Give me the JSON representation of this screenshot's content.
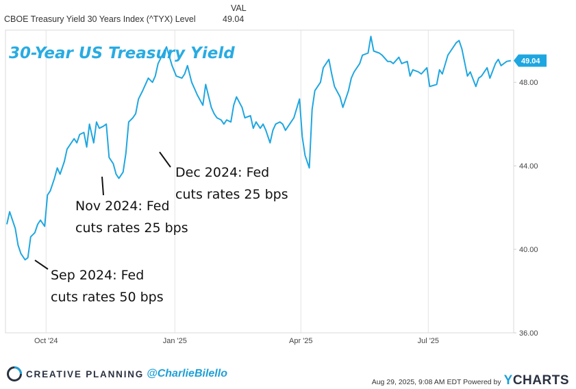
{
  "legend": {
    "series_name": "CBOE Treasury Yield 30 Years Index (^TYX) Level",
    "value_header": "VAL",
    "value": "49.04"
  },
  "chart_data": {
    "type": "line",
    "title": "30-Year US Treasury Yield",
    "xlabel": "",
    "ylabel": "",
    "x_ticks": [
      "Oct '24",
      "Jan '25",
      "Apr '25",
      "Jul '25"
    ],
    "y_ticks": [
      "36.00",
      "40.00",
      "44.00",
      "48.00"
    ],
    "ylim": [
      36,
      50.5
    ],
    "grid": "vertical-lines",
    "last_value_label": "49.04",
    "line_color": "#1ea6e0",
    "series": [
      {
        "name": "CBOE Treasury Yield 30 Years Index (^TYX) Level",
        "x": [
          "2024-09-03",
          "2024-09-05",
          "2024-09-09",
          "2024-09-11",
          "2024-09-13",
          "2024-09-16",
          "2024-09-18",
          "2024-09-20",
          "2024-09-23",
          "2024-09-25",
          "2024-09-27",
          "2024-09-30",
          "2024-10-02",
          "2024-10-04",
          "2024-10-07",
          "2024-10-09",
          "2024-10-11",
          "2024-10-14",
          "2024-10-16",
          "2024-10-18",
          "2024-10-21",
          "2024-10-23",
          "2024-10-25",
          "2024-10-28",
          "2024-10-30",
          "2024-11-01",
          "2024-11-04",
          "2024-11-06",
          "2024-11-08",
          "2024-11-11",
          "2024-11-13",
          "2024-11-15",
          "2024-11-18",
          "2024-11-20",
          "2024-11-22",
          "2024-11-25",
          "2024-11-27",
          "2024-11-29",
          "2024-12-02",
          "2024-12-04",
          "2024-12-06",
          "2024-12-09",
          "2024-12-11",
          "2024-12-13",
          "2024-12-16",
          "2024-12-18",
          "2024-12-20",
          "2024-12-23",
          "2024-12-26",
          "2024-12-30",
          "2025-01-02",
          "2025-01-06",
          "2025-01-08",
          "2025-01-10",
          "2025-01-13",
          "2025-01-15",
          "2025-01-17",
          "2025-01-21",
          "2025-01-23",
          "2025-01-27",
          "2025-01-29",
          "2025-01-31",
          "2025-02-03",
          "2025-02-05",
          "2025-02-07",
          "2025-02-10",
          "2025-02-12",
          "2025-02-14",
          "2025-02-18",
          "2025-02-20",
          "2025-02-24",
          "2025-02-26",
          "2025-02-28",
          "2025-03-03",
          "2025-03-05",
          "2025-03-07",
          "2025-03-10",
          "2025-03-12",
          "2025-03-14",
          "2025-03-17",
          "2025-03-19",
          "2025-03-21",
          "2025-03-25",
          "2025-03-27",
          "2025-03-31",
          "2025-04-02",
          "2025-04-04",
          "2025-04-07",
          "2025-04-09",
          "2025-04-11",
          "2025-04-15",
          "2025-04-17",
          "2025-04-21",
          "2025-04-23",
          "2025-04-25",
          "2025-04-29",
          "2025-05-01",
          "2025-05-05",
          "2025-05-07",
          "2025-05-09",
          "2025-05-13",
          "2025-05-15",
          "2025-05-19",
          "2025-05-21",
          "2025-05-23",
          "2025-05-27",
          "2025-05-29",
          "2025-06-02",
          "2025-06-04",
          "2025-06-06",
          "2025-06-10",
          "2025-06-12",
          "2025-06-16",
          "2025-06-18",
          "2025-06-20",
          "2025-06-24",
          "2025-06-26",
          "2025-06-30",
          "2025-07-02",
          "2025-07-07",
          "2025-07-09",
          "2025-07-11",
          "2025-07-15",
          "2025-07-17",
          "2025-07-21",
          "2025-07-23",
          "2025-07-25",
          "2025-07-29",
          "2025-07-31",
          "2025-08-04",
          "2025-08-06",
          "2025-08-08",
          "2025-08-12",
          "2025-08-14",
          "2025-08-18",
          "2025-08-20",
          "2025-08-22",
          "2025-08-26",
          "2025-08-29"
        ],
        "y": [
          41.2,
          41.8,
          41.0,
          40.2,
          39.8,
          39.5,
          39.6,
          40.6,
          40.8,
          41.2,
          41.4,
          41.1,
          42.6,
          42.8,
          43.4,
          43.9,
          43.6,
          44.2,
          44.8,
          45.0,
          45.3,
          45.1,
          45.5,
          45.6,
          44.9,
          46.0,
          45.1,
          46.1,
          45.8,
          45.9,
          46.0,
          44.4,
          44.1,
          43.6,
          43.4,
          43.7,
          44.6,
          46.1,
          46.3,
          46.5,
          47.2,
          47.6,
          47.9,
          48.2,
          48.0,
          48.3,
          48.9,
          49.3,
          49.7,
          48.8,
          48.3,
          48.2,
          48.4,
          48.8,
          48.0,
          47.7,
          47.4,
          46.9,
          47.9,
          46.8,
          46.5,
          46.3,
          46.2,
          46.0,
          46.2,
          46.1,
          46.9,
          47.3,
          46.8,
          46.3,
          46.4,
          45.8,
          46.1,
          45.8,
          46.0,
          45.7,
          45.1,
          45.7,
          46.0,
          46.1,
          46.0,
          45.7,
          46.1,
          46.3,
          47.2,
          45.4,
          44.5,
          43.9,
          46.7,
          47.6,
          48.0,
          48.7,
          49.1,
          48.4,
          47.8,
          47.3,
          46.8,
          47.6,
          48.2,
          48.5,
          48.9,
          49.3,
          49.4,
          50.2,
          49.5,
          49.4,
          49.3,
          49.0,
          49.0,
          48.9,
          49.2,
          48.9,
          49.0,
          48.3,
          48.6,
          48.5,
          48.4,
          48.7,
          47.8,
          47.9,
          48.6,
          48.4,
          49.3,
          49.5,
          49.9,
          50.0,
          49.6,
          48.3,
          48.5,
          47.8,
          48.2,
          48.3,
          48.7,
          48.2,
          48.9,
          49.1,
          48.8,
          49.0,
          49.04
        ]
      }
    ],
    "annotations": [
      {
        "text_line1": "Sep 2024: Fed",
        "text_line2": "cuts rates 50 bps",
        "date": "2024-09-18"
      },
      {
        "text_line1": "Nov 2024: Fed",
        "text_line2": "cuts rates 25 bps",
        "date": "2024-11-07"
      },
      {
        "text_line1": "Dec 2024: Fed",
        "text_line2": "cuts rates 25 bps",
        "date": "2024-12-18"
      }
    ]
  },
  "footer": {
    "brand_name": "CREATIVE PLANNING",
    "handle": "@CharlieBilello",
    "timestamp": "Aug 29, 2025, 9:08 AM EDT Powered by",
    "ycharts_y": "Y",
    "ycharts_rest": "CHARTS"
  },
  "colors": {
    "line": "#1ea6e0",
    "title": "#29abe2",
    "grid": "#e3e3e3",
    "brand_dark": "#2a3140"
  },
  "icons": [
    "creative-planning-logo-icon"
  ]
}
